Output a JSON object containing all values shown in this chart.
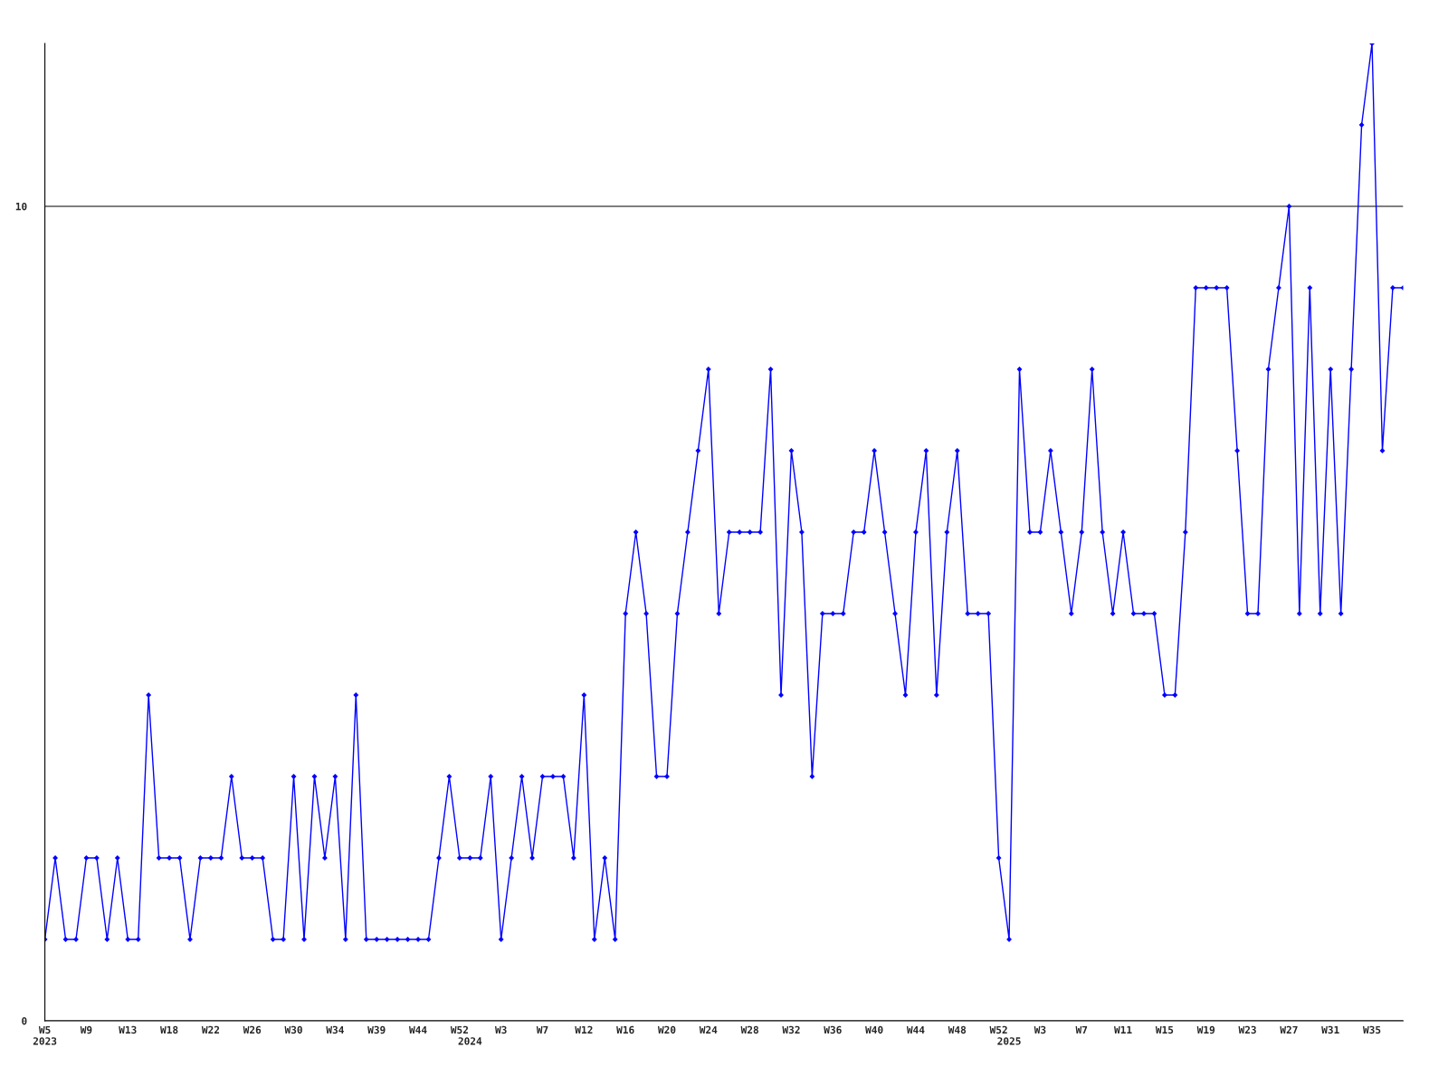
{
  "chart_data": {
    "type": "line",
    "categories": [
      "W5\n2023",
      null,
      null,
      null,
      "W9",
      null,
      null,
      null,
      "W13",
      null,
      null,
      null,
      "W18",
      null,
      null,
      null,
      "W22",
      null,
      null,
      null,
      "W26",
      null,
      null,
      null,
      "W30",
      null,
      null,
      null,
      "W34",
      null,
      null,
      null,
      "W39",
      null,
      null,
      null,
      "W44",
      null,
      null,
      null,
      "W52",
      "\n2024",
      null,
      null,
      "W3",
      null,
      null,
      null,
      "W7",
      null,
      null,
      null,
      "W12",
      null,
      null,
      null,
      "W16",
      null,
      null,
      null,
      "W20",
      null,
      null,
      null,
      "W24",
      null,
      null,
      null,
      "W28",
      null,
      null,
      null,
      "W32",
      null,
      null,
      null,
      "W36",
      null,
      null,
      null,
      "W40",
      null,
      null,
      null,
      "W44",
      null,
      null,
      null,
      "W48",
      null,
      null,
      null,
      "W52",
      "\n2025",
      null,
      null,
      "W3",
      null,
      null,
      null,
      "W7",
      null,
      null,
      null,
      "W11",
      null,
      null,
      null,
      "W15",
      null,
      null,
      null,
      "W19",
      null,
      null,
      null,
      "W23",
      null,
      null,
      null,
      "W27",
      null,
      null,
      null,
      "W31",
      null,
      null,
      null,
      "W35",
      null,
      null,
      null
    ],
    "series": [
      {
        "color": "#0000ff",
        "values": [
          1,
          2,
          1,
          1,
          2,
          2,
          1,
          2,
          1,
          1,
          4,
          2,
          2,
          2,
          1,
          2,
          2,
          2,
          3,
          2,
          2,
          2,
          1,
          1,
          3,
          1,
          3,
          2,
          3,
          1,
          4,
          1,
          1,
          1,
          1,
          1,
          1,
          1,
          2,
          3,
          2,
          2,
          2,
          3,
          1,
          2,
          3,
          2,
          3,
          3,
          3,
          2,
          4,
          1,
          2,
          1,
          5,
          6,
          5,
          3,
          3,
          5,
          6,
          7,
          8,
          5,
          6,
          6,
          6,
          6,
          8,
          4,
          7,
          6,
          3,
          5,
          5,
          5,
          6,
          6,
          7,
          6,
          5,
          4,
          6,
          7,
          4,
          6,
          7,
          5,
          5,
          5,
          2,
          1,
          8,
          6,
          6,
          7,
          6,
          5,
          6,
          8,
          6,
          5,
          6,
          5,
          5,
          5,
          4,
          4,
          6,
          9,
          9,
          9,
          9,
          7,
          5,
          5,
          8,
          9,
          10,
          5,
          9,
          5,
          8,
          5,
          8,
          11,
          12,
          7,
          9,
          9
        ]
      }
    ],
    "ylim": [
      0,
      12
    ],
    "yticks": [
      0,
      10
    ],
    "grid": "y",
    "marker": "diamond",
    "line_style": "solid"
  }
}
